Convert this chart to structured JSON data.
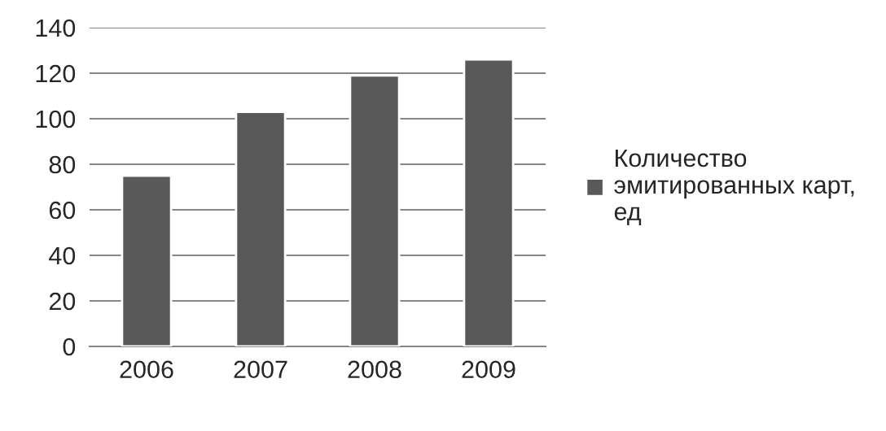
{
  "chart_data": {
    "type": "bar",
    "categories": [
      "2006",
      "2007",
      "2008",
      "2009"
    ],
    "series": [
      {
        "name": "Количество эмитированных карт, ед",
        "color": "#595959",
        "values": [
          75,
          103,
          119,
          126
        ]
      }
    ],
    "ylim": [
      0,
      140
    ],
    "yticks": [
      0,
      20,
      40,
      60,
      80,
      100,
      120,
      140
    ],
    "grid": "y",
    "legend": "right"
  }
}
